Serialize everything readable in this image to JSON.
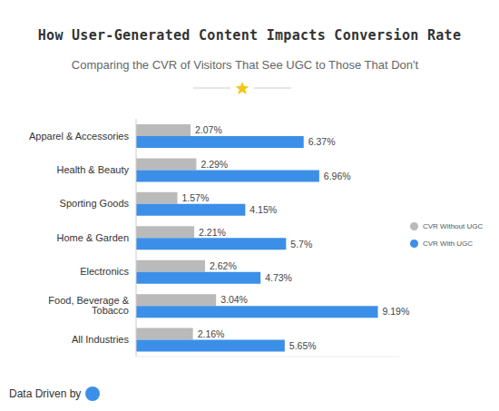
{
  "chart_data": {
    "type": "bar",
    "title": "How User-Generated Content Impacts Conversion Rate",
    "subtitle": "Comparing the CVR of Visitors That See UGC to Those That Don't",
    "annotations": [
      "Data Driven by"
    ],
    "orientation": "horizontal",
    "categories": [
      "Apparel & Accessories",
      "Health & Beauty",
      "Sporting Goods",
      "Home & Garden",
      "Electronics",
      "Food, Beverage & Tobacco",
      "All Industries"
    ],
    "series": [
      {
        "name": "CVR Without UGC",
        "color": "#bababa",
        "values": [
          2.07,
          2.29,
          1.57,
          2.21,
          2.62,
          3.04,
          2.16
        ],
        "value_labels": [
          "2.07%",
          "2.29%",
          "1.57%",
          "2.21%",
          "2.62%",
          "3.04%",
          "2.16%"
        ]
      },
      {
        "name": "CVR With UGC",
        "color": "#3b8fe8",
        "values": [
          6.37,
          6.96,
          4.15,
          5.7,
          4.73,
          9.19,
          5.65
        ],
        "value_labels": [
          "6.37%",
          "6.96%",
          "4.15%",
          "5.7%",
          "4.73%",
          "9.19%",
          "5.65%"
        ]
      }
    ],
    "xlim": [
      0,
      10
    ],
    "grid": false,
    "legend": "right",
    "data_labels": true,
    "tick_labels": "y"
  }
}
